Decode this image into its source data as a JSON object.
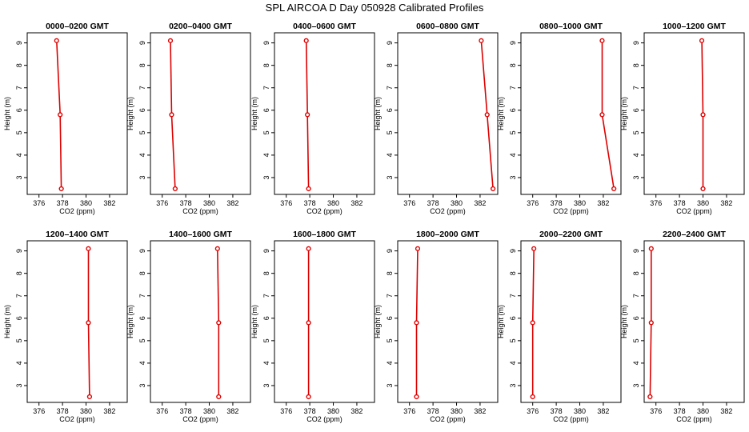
{
  "chart_data": {
    "type": "line",
    "title": "SPL AIRCOA D  Day 050928  Calibrated Profiles",
    "xlabel": "CO2 (ppm)",
    "ylabel": "Height (m)",
    "xlim": [
      375,
      383.5
    ],
    "ylim": [
      2.25,
      9.45
    ],
    "xticks": [
      376,
      378,
      380,
      382
    ],
    "yticks": [
      3,
      4,
      5,
      6,
      7,
      8,
      9
    ],
    "heights": [
      9.1,
      5.8,
      2.5
    ],
    "grid": false,
    "layout": "2 rows x 6 columns",
    "panels": [
      {
        "label": "0000–0200 GMT",
        "co2": [
          377.5,
          377.8,
          377.9
        ]
      },
      {
        "label": "0200–0400 GMT",
        "co2": [
          376.7,
          376.8,
          377.1
        ]
      },
      {
        "label": "0400–0600 GMT",
        "co2": [
          377.7,
          377.8,
          377.9
        ]
      },
      {
        "label": "0600–0800 GMT",
        "co2": [
          382.1,
          382.6,
          383.1
        ]
      },
      {
        "label": "0800–1000 GMT",
        "co2": [
          381.9,
          381.9,
          382.9
        ]
      },
      {
        "label": "1000–1200 GMT",
        "co2": [
          379.9,
          380.0,
          380.0
        ]
      },
      {
        "label": "1200–1400 GMT",
        "co2": [
          380.2,
          380.2,
          380.3
        ]
      },
      {
        "label": "1400–1600 GMT",
        "co2": [
          380.7,
          380.8,
          380.8
        ]
      },
      {
        "label": "1600–1800 GMT",
        "co2": [
          377.9,
          377.9,
          377.9
        ]
      },
      {
        "label": "1800–2000 GMT",
        "co2": [
          376.7,
          376.6,
          376.6
        ]
      },
      {
        "label": "2000–2200 GMT",
        "co2": [
          376.1,
          376.0,
          376.0
        ]
      },
      {
        "label": "2200–2400 GMT",
        "co2": [
          375.6,
          375.6,
          375.5
        ]
      }
    ]
  }
}
